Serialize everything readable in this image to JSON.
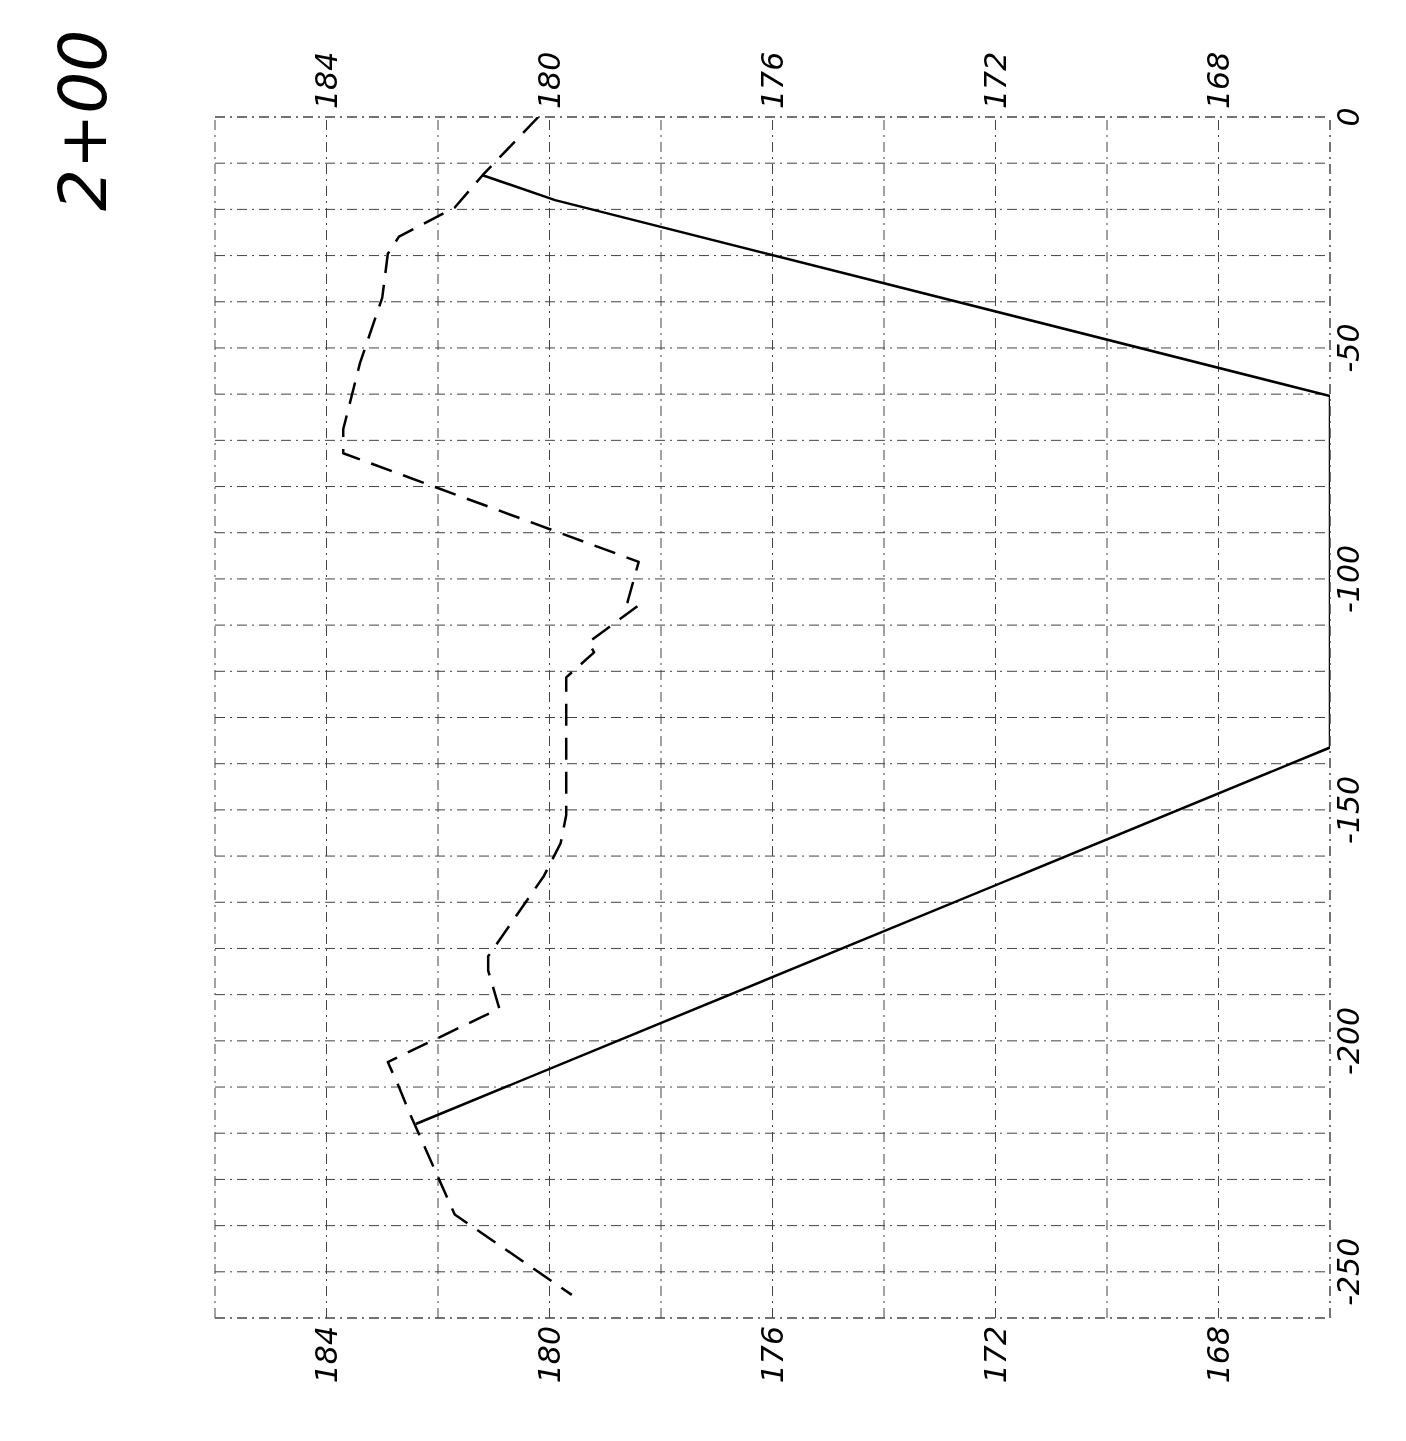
{
  "chart_data": {
    "type": "line",
    "title": "2+00",
    "xlim": [
      186,
      166
    ],
    "xticks": [
      {
        "value": 186,
        "label": null
      },
      184,
      {
        "value": 182,
        "label": null
      },
      180,
      {
        "value": 178,
        "label": null
      },
      176,
      {
        "value": 174,
        "label": null
      },
      172,
      {
        "value": 170,
        "label": null
      },
      168,
      {
        "value": 166,
        "label": null
      }
    ],
    "x2lim": [
      186,
      166
    ],
    "x2ticks": [
      184,
      180,
      176,
      172,
      168
    ],
    "ylim": [
      -260,
      0
    ],
    "yticks": [
      {
        "value": -260,
        "label": null
      },
      -250,
      {
        "value": -240,
        "label": null
      },
      {
        "value": -230,
        "label": null
      },
      {
        "value": -220,
        "label": null
      },
      {
        "value": -210,
        "label": null
      },
      -200,
      {
        "value": -190,
        "label": null
      },
      {
        "value": -180,
        "label": null
      },
      {
        "value": -170,
        "label": null
      },
      {
        "value": -160,
        "label": null
      },
      -150,
      {
        "value": -140,
        "label": null
      },
      {
        "value": -130,
        "label": null
      },
      {
        "value": -120,
        "label": null
      },
      {
        "value": -110,
        "label": null
      },
      -100,
      {
        "value": -90,
        "label": null
      },
      {
        "value": -80,
        "label": null
      },
      {
        "value": -70,
        "label": null
      },
      {
        "value": -60,
        "label": null
      },
      -50,
      {
        "value": -40,
        "label": null
      },
      {
        "value": -30,
        "label": null
      },
      {
        "value": -20,
        "label": null
      },
      {
        "value": -10,
        "label": null
      },
      0
    ],
    "grid": true,
    "marker": "none",
    "series": [
      {
        "color": "#000000",
        "line_style": "solid",
        "x": [
          181.2,
          179.9,
          166.0,
          166.0,
          182.4
        ],
        "values": [
          -12.6,
          -18.0,
          -60.4,
          -136.5,
          -218.0
        ]
      },
      {
        "color": "#000000",
        "line_style": "dashed",
        "x": [
          180.2,
          181.2,
          181.7,
          182.7,
          182.9,
          183.0,
          183.4,
          183.7,
          183.7,
          178.4,
          178.6,
          178.4,
          179.3,
          179.2,
          179.7,
          179.7,
          179.8,
          180.1,
          181.1,
          181.1,
          180.9,
          182.9,
          182.7,
          182.5,
          181.7,
          179.6
        ],
        "values": [
          0,
          -12.6,
          -19.6,
          -25.9,
          -29.6,
          -39.1,
          -53.3,
          -67.6,
          -72.8,
          -96.3,
          -105.0,
          -105.7,
          -113.7,
          -115.9,
          -121.3,
          -151.1,
          -157.2,
          -164.3,
          -181.7,
          -184.8,
          -193.0,
          -204.6,
          -210.0,
          -215.9,
          -237.6,
          -255.0
        ]
      }
    ]
  }
}
